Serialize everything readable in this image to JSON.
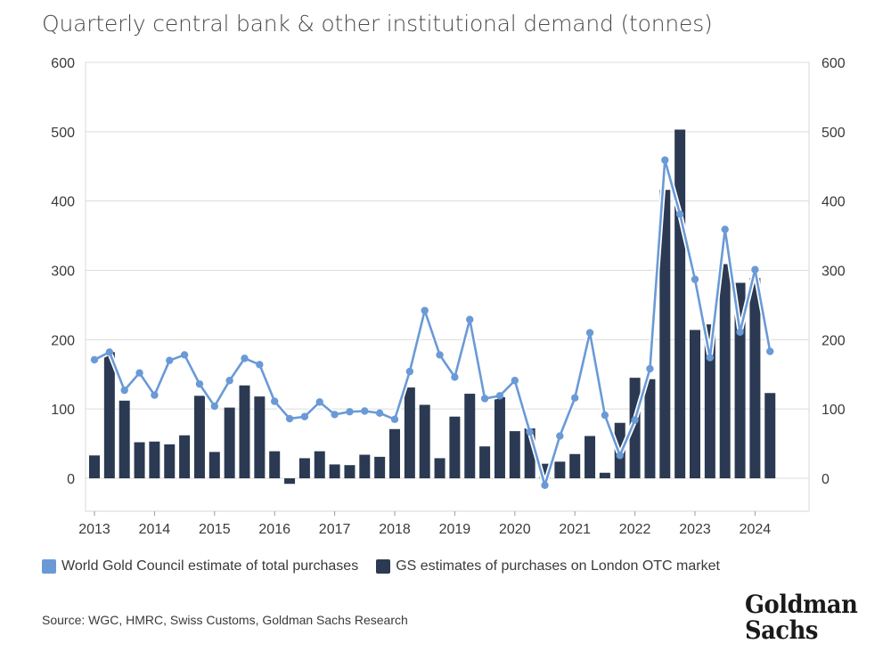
{
  "chart_data": {
    "type": "bar+line",
    "title": "Quarterly central bank & other institutional demand (tonnes)",
    "x_labels": [
      "2013",
      "2014",
      "2015",
      "2016",
      "2017",
      "2018",
      "2019",
      "2020",
      "2021",
      "2022",
      "2023",
      "2024"
    ],
    "ylim": [
      -50,
      600
    ],
    "yticks": [
      0,
      100,
      200,
      300,
      400,
      500,
      600
    ],
    "grid": true,
    "series": [
      {
        "name": "GS estimates of purchases on London OTC market",
        "kind": "bar",
        "color": "#2b3a52",
        "values": [
          33,
          182,
          112,
          52,
          53,
          49,
          62,
          119,
          38,
          102,
          134,
          118,
          39,
          -8,
          29,
          39,
          20,
          19,
          34,
          31,
          71,
          131,
          106,
          29,
          89,
          122,
          46,
          117,
          68,
          72,
          21,
          24,
          35,
          61,
          8,
          80,
          145,
          143,
          416,
          503,
          214,
          222,
          309,
          282,
          289,
          123
        ]
      },
      {
        "name": "World Gold Council estimate of total purchases",
        "kind": "line",
        "color": "#6a9ad6",
        "values": [
          171,
          182,
          127,
          152,
          120,
          170,
          178,
          136,
          104,
          141,
          173,
          164,
          111,
          86,
          89,
          110,
          92,
          96,
          97,
          94,
          85,
          154,
          242,
          178,
          146,
          229,
          115,
          119,
          141,
          67,
          -10,
          61,
          116,
          210,
          91,
          33,
          84,
          158,
          459,
          381,
          287,
          174,
          359,
          211,
          301,
          183
        ]
      }
    ],
    "legend": [
      {
        "label": "World Gold Council estimate of total purchases",
        "color": "#6a9ad6"
      },
      {
        "label": "GS estimates of purchases on London OTC market",
        "color": "#2b3a52"
      }
    ],
    "source": "Source: WGC, HMRC, Swiss Customs, Goldman Sachs Research"
  },
  "logo": {
    "line1": "Goldman",
    "line2": "Sachs"
  }
}
